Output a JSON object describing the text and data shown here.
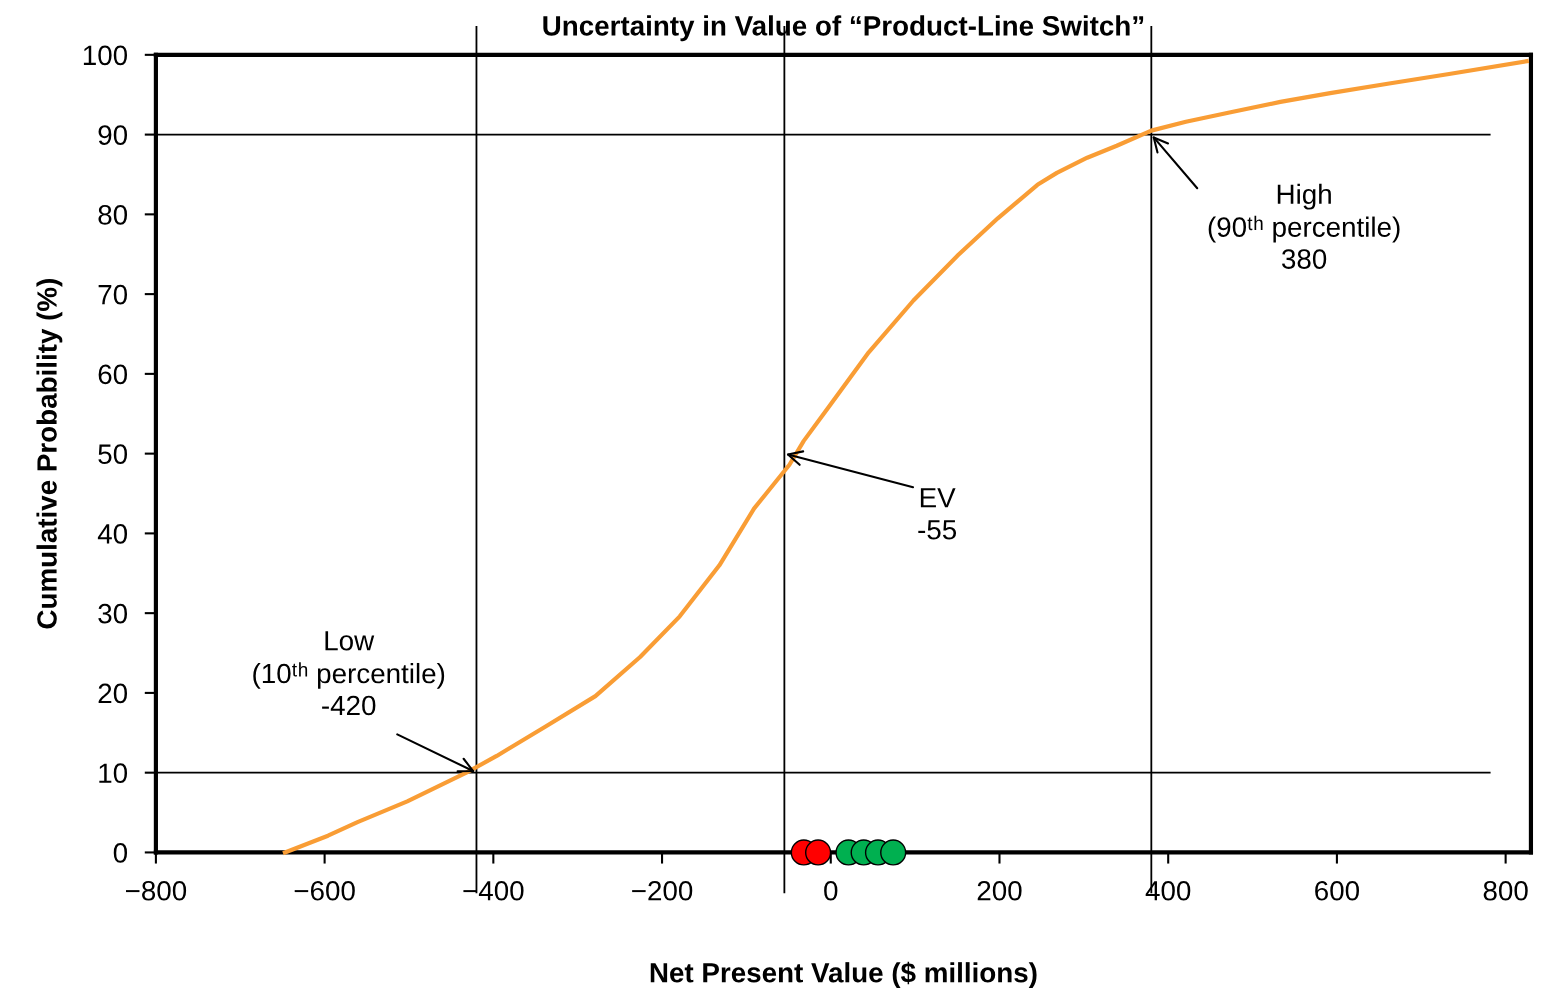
{
  "chart_data": {
    "type": "line",
    "title": "Uncertainty in Value of “Product-Line Switch”",
    "xlabel": "Net Present Value ($ millions)",
    "ylabel": "Cumulative Probability (%)",
    "xlim": [
      -800,
      830
    ],
    "xticks": [
      {
        "value": -800,
        "label": "−800"
      },
      {
        "value": -600,
        "label": "−600"
      },
      {
        "value": -400,
        "label": "−400"
      },
      {
        "value": -200,
        "label": "−200"
      },
      0,
      200,
      400,
      600,
      800
    ],
    "ylim": [
      0,
      100
    ],
    "yticks": [
      0,
      10,
      20,
      30,
      40,
      50,
      60,
      70,
      80,
      90,
      100
    ],
    "grid": false,
    "legend": false,
    "series": [
      {
        "color": "#f99d35",
        "marker": "none",
        "x": [
          -647,
          -596,
          -561,
          -502,
          -432,
          -396,
          -338,
          -279,
          -226,
          -179,
          -132,
          -91,
          -49,
          -32,
          -2,
          45,
          98,
          151,
          198,
          245,
          268,
          304,
          339,
          380,
          421,
          474,
          533,
          592,
          662,
          733,
          825
        ],
        "values": [
          0,
          2.1,
          3.8,
          6.4,
          10,
          12.1,
          15.8,
          19.6,
          24.5,
          29.6,
          36,
          43.1,
          48.6,
          51.6,
          55.9,
          62.7,
          69.2,
          74.9,
          79.5,
          83.7,
          85.2,
          87.1,
          88.6,
          90.5,
          91.6,
          92.8,
          94.1,
          95.2,
          96.4,
          97.6,
          99.2
        ]
      },
      {
        "type": "scatter",
        "marker": "circle",
        "x": [
          -32,
          -15
        ],
        "values": [
          0,
          0
        ],
        "color": "#ff0000"
      },
      {
        "type": "scatter",
        "marker": "circle",
        "x": [
          21,
          39,
          56,
          74
        ],
        "values": [
          0,
          0,
          0,
          0
        ],
        "color": "#00b050"
      }
    ],
    "ref_lines": [
      {
        "axis": "y",
        "value": 10,
        "color": "#000000"
      },
      {
        "axis": "y",
        "value": 90,
        "color": "#000000"
      },
      {
        "axis": "x",
        "value": -420,
        "color": "#000000"
      },
      {
        "axis": "x",
        "value": -55,
        "color": "#000000"
      },
      {
        "axis": "x",
        "value": 380,
        "color": "#000000"
      }
    ],
    "annotations": [
      {
        "text": "Low\n(10ᵗʰ percentile)\n-420",
        "x": -420,
        "y": 10
      },
      {
        "text": "EV\n-55",
        "x": -55,
        "y": 50
      },
      {
        "text": "High\n(90ᵗʰ percentile)\n380",
        "x": 380,
        "y": 90
      }
    ]
  }
}
